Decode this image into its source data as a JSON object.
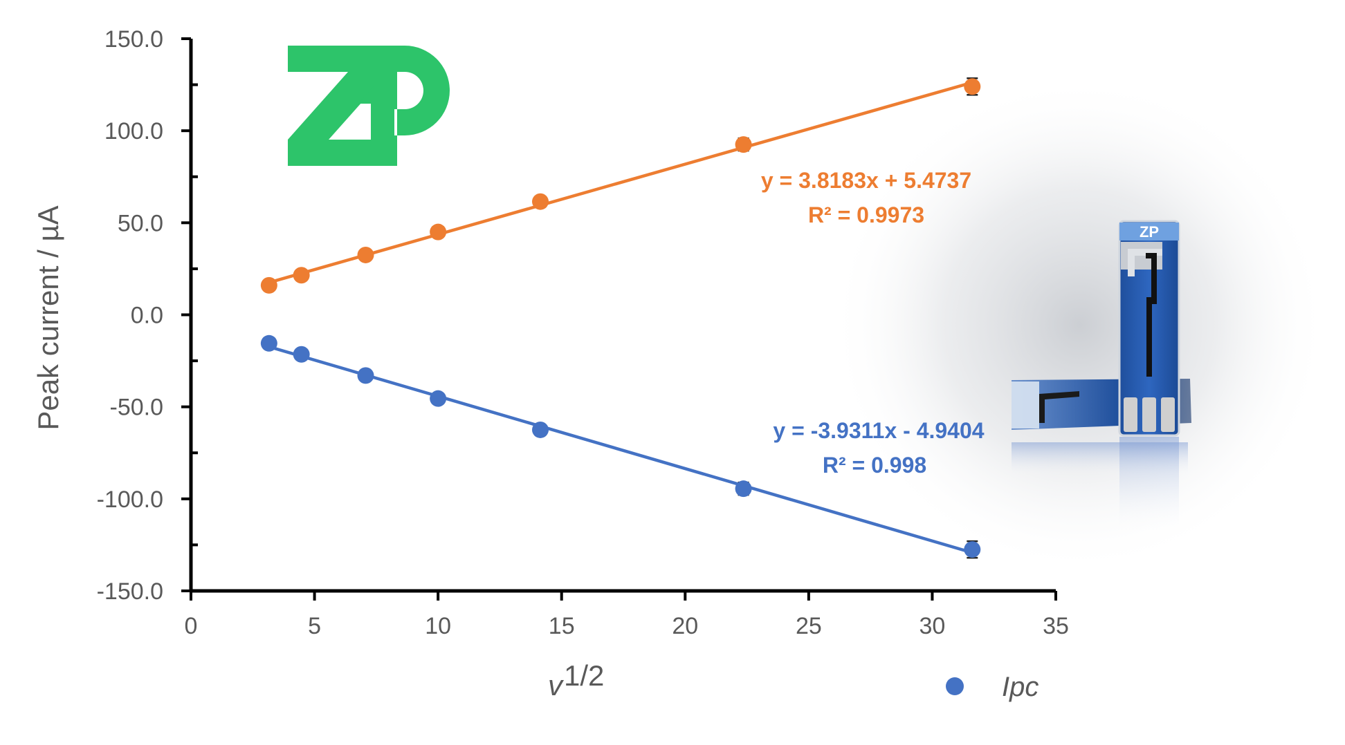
{
  "chart_data": {
    "type": "scatter",
    "xlabel": "v",
    "xlabel_sup": "1/2",
    "ylabel": "Peak current / µA",
    "xlim": [
      0,
      35
    ],
    "ylim": [
      -150,
      150
    ],
    "xticks": [
      0,
      5,
      10,
      15,
      20,
      25,
      30,
      35
    ],
    "yticks": [
      150,
      100,
      50,
      0,
      -50,
      -100,
      -150
    ],
    "ytick_labels": [
      "150.0",
      "100.0",
      "50.0",
      "0.0",
      "-50.0",
      "-100.0",
      "-150.0"
    ],
    "grid": false,
    "series": [
      {
        "color": "#ED7D31",
        "x": [
          3.16,
          4.47,
          7.07,
          10.0,
          14.14,
          22.36,
          31.62
        ],
        "y": [
          16.0,
          21.5,
          32.5,
          45.0,
          61.5,
          92.5,
          124.0
        ],
        "trendline": {
          "slope": 3.8183,
          "intercept": 5.4737
        },
        "equation": "y = 3.8183x + 5.4737",
        "r2": "R² = 0.9973"
      },
      {
        "name": "Ipc",
        "color": "#4472C4",
        "x": [
          3.16,
          4.47,
          7.07,
          10.0,
          14.14,
          22.36,
          31.62
        ],
        "y": [
          -15.5,
          -21.5,
          -33.0,
          -45.5,
          -62.5,
          -94.5,
          -127.5
        ],
        "trendline": {
          "slope": -3.9311,
          "intercept": -4.9404
        },
        "equation": "y = -3.9311x - 4.9404",
        "r2": "R² = 0.998"
      }
    ],
    "legend": {
      "label": "Ipc",
      "position": "bottom-right"
    }
  },
  "branding": {
    "logo_text": "ZP",
    "logo_color": "#2DC46A",
    "electrode_image": "screen-printed-electrode-photo"
  }
}
